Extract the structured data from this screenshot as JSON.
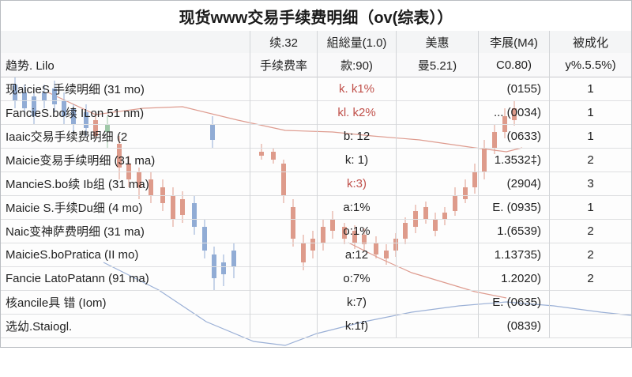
{
  "title": "现货www交易手续费明细（ov(综表））",
  "header": {
    "columns": [
      "",
      "续.32",
      "組総量(1.0)",
      "美惠",
      "李展(M4)",
      "被成化"
    ]
  },
  "subheader": {
    "cells": [
      "趋势. Lilo",
      "手续费率",
      "款:90)",
      "曼5.21)",
      "C0.80)",
      "y%.5.5%)"
    ]
  },
  "rows": [
    {
      "name": "现aicieS 手续明细 (31 mo)",
      "c2": "",
      "c3": "k. k1%",
      "c3_red": true,
      "c4": "",
      "c5": "(0155)",
      "c6": "1"
    },
    {
      "name": "FancieS.bo续 ILon 51 nm)",
      "c2": "",
      "c3": "kl. k2%",
      "c3_red": true,
      "c4": "",
      "c5": "... (0034)",
      "c6": "1"
    },
    {
      "name": "Iaaic交易手续费明细 (2",
      "c2": "",
      "c3": "b: 12",
      "c3_red": false,
      "c4": "",
      "c5": "(0633)",
      "c6": "1"
    },
    {
      "name": "Maicie变易手续明细 (31 ma)",
      "c2": "",
      "c3": "k: 1)",
      "c3_red": false,
      "c4": "",
      "c5": "1.3532‡)",
      "c6": "2"
    },
    {
      "name": "MancieS.bo续 Ib组 (31 ma)",
      "c2": "",
      "c3": "k:3)",
      "c3_red": true,
      "c4": "",
      "c5": "(2904)",
      "c6": "3"
    },
    {
      "name": "Maicie S.手续Du细 (4 mo)",
      "c2": "",
      "c3": "a:1%",
      "c3_red": false,
      "c4": "",
      "c5": "E. (0935)",
      "c6": "1"
    },
    {
      "name": "Naic变神萨费明细 (31 ma)",
      "c2": "",
      "c3": "o:1%",
      "c3_red": false,
      "c4": "",
      "c5": "1.(6539)",
      "c6": "2"
    },
    {
      "name": "MaicieS.boPratica (II mo)",
      "c2": "",
      "c3": "a:12",
      "c3_red": false,
      "c4": "",
      "c5": "1.13735)",
      "c6": "2"
    },
    {
      "name": "Fancie LatoPatann (91 ma)",
      "c2": "",
      "c3": "o:7%",
      "c3_red": false,
      "c4": "",
      "c5": "1.2020)",
      "c6": "2"
    },
    {
      "name": "核ancile具 错 (Iom)",
      "c2": "",
      "c3": "k:7)",
      "c3_red": false,
      "c4": "",
      "c5": "E. (0635)",
      "c6": ""
    },
    {
      "name": "选幼.Staiogl.",
      "c2": "",
      "c3": "k:1f)",
      "c3_red": false,
      "c4": "",
      "c5": "(0839)",
      "c6": ""
    }
  ],
  "colors": {
    "candle_up": "#8fbf9a",
    "candle_down": "#d98a78",
    "candle_blue": "#7f9fcf",
    "line_red": "#d98b7c",
    "line_blue": "#8aa3d0"
  }
}
